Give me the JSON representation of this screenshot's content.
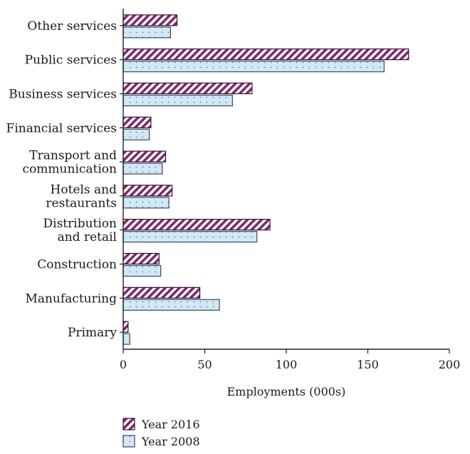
{
  "chart_data": {
    "type": "bar",
    "orientation": "horizontal",
    "title": "",
    "xlabel": "Employments (000s)",
    "ylabel": "",
    "xlim": [
      0,
      200
    ],
    "xticks": [
      "0",
      "50",
      "100",
      "150",
      "200"
    ],
    "categories": [
      "Other services",
      "Public services",
      "Business services",
      "Financial services",
      "Transport and\ncommunication",
      "Hotels and\nrestaurants",
      "Distribution\nand retail",
      "Construction",
      "Manufacturing",
      "Primary"
    ],
    "series": [
      {
        "name": "Year 2016",
        "color": "#7b2a6b",
        "pattern": "diagonal-stripes",
        "values": [
          33,
          175,
          79,
          17,
          26,
          30,
          90,
          22,
          47,
          3
        ]
      },
      {
        "name": "Year 2008",
        "color": "#cfe9f5",
        "pattern": "dots",
        "values": [
          29,
          160,
          67,
          16,
          24,
          28,
          82,
          23,
          59,
          4
        ]
      }
    ],
    "legend_position": "bottom-left",
    "grid": false
  }
}
